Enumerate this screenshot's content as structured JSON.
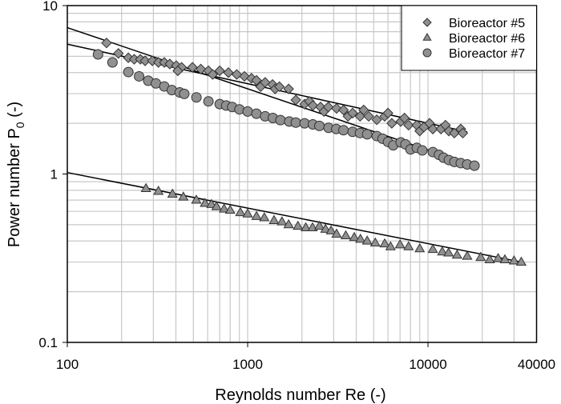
{
  "chart_data": {
    "type": "scatter",
    "xscale": "log",
    "yscale": "log",
    "xlim": [
      100,
      40000
    ],
    "ylim": [
      0.1,
      10
    ],
    "grid": true,
    "legend_position": "top-right",
    "xlabel": "Reynolds number Re (-)",
    "ylabel": {
      "main": "Power number P",
      "sub": "0",
      "suffix": " (-)"
    },
    "xticks": [
      {
        "value": 100,
        "label": "100"
      },
      {
        "value": 1000,
        "label": "1000"
      },
      {
        "value": 10000,
        "label": "10000"
      },
      {
        "value": 40000,
        "label": "40000"
      }
    ],
    "yticks": [
      {
        "value": 0.1,
        "label": "0.1"
      },
      {
        "value": 1,
        "label": "1"
      },
      {
        "value": 10,
        "label": "10"
      }
    ],
    "colors": {
      "marker_fill": "#909090",
      "marker_stroke": "#333333",
      "grid": "#c8c8c8",
      "fit_line": "#000000"
    },
    "series": [
      {
        "name": "Bioreactor #5",
        "marker": "diamond",
        "points": [
          [
            165,
            6.0
          ],
          [
            192,
            5.2
          ],
          [
            218,
            4.9
          ],
          [
            235,
            4.8
          ],
          [
            254,
            4.8
          ],
          [
            270,
            4.7
          ],
          [
            296,
            4.7
          ],
          [
            320,
            4.6
          ],
          [
            345,
            4.6
          ],
          [
            370,
            4.5
          ],
          [
            402,
            4.4
          ],
          [
            430,
            4.3
          ],
          [
            410,
            4.1
          ],
          [
            494,
            4.3
          ],
          [
            550,
            4.2
          ],
          [
            606,
            4.1
          ],
          [
            640,
            3.9
          ],
          [
            700,
            4.1
          ],
          [
            782,
            4.0
          ],
          [
            870,
            3.9
          ],
          [
            960,
            3.8
          ],
          [
            1050,
            3.7
          ],
          [
            1119,
            3.6
          ],
          [
            1180,
            3.3
          ],
          [
            1250,
            3.5
          ],
          [
            1374,
            3.4
          ],
          [
            1420,
            3.2
          ],
          [
            1500,
            3.3
          ],
          [
            1687,
            3.2
          ],
          [
            1850,
            2.75
          ],
          [
            2069,
            2.6
          ],
          [
            2200,
            2.7
          ],
          [
            2300,
            2.55
          ],
          [
            2537,
            2.5
          ],
          [
            2650,
            2.35
          ],
          [
            2800,
            2.5
          ],
          [
            3112,
            2.45
          ],
          [
            3400,
            2.4
          ],
          [
            3600,
            2.2
          ],
          [
            3821,
            2.3
          ],
          [
            4200,
            2.2
          ],
          [
            4400,
            2.4
          ],
          [
            4690,
            2.2
          ],
          [
            5200,
            2.1
          ],
          [
            5754,
            2.2
          ],
          [
            6000,
            2.3
          ],
          [
            6300,
            2.0
          ],
          [
            7063,
            2.05
          ],
          [
            7400,
            2.15
          ],
          [
            7800,
            1.95
          ],
          [
            8670,
            1.95
          ],
          [
            9000,
            1.8
          ],
          [
            9500,
            1.9
          ],
          [
            10200,
            2.0
          ],
          [
            10640,
            1.85
          ],
          [
            11800,
            1.85
          ],
          [
            12500,
            1.95
          ],
          [
            13060,
            1.8
          ],
          [
            14000,
            1.75
          ],
          [
            15200,
            1.85
          ],
          [
            15600,
            1.75
          ]
        ],
        "fit": [
          [
            100,
            5.9
          ],
          [
            16500,
            1.78
          ]
        ]
      },
      {
        "name": "Bioreactor #6",
        "marker": "triangle",
        "points": [
          [
            273,
            0.82
          ],
          [
            320,
            0.79
          ],
          [
            383,
            0.76
          ],
          [
            440,
            0.73
          ],
          [
            519,
            0.7
          ],
          [
            580,
            0.67
          ],
          [
            630,
            0.66
          ],
          [
            672,
            0.64
          ],
          [
            740,
            0.62
          ],
          [
            800,
            0.61
          ],
          [
            911,
            0.59
          ],
          [
            1000,
            0.58
          ],
          [
            1120,
            0.56
          ],
          [
            1237,
            0.55
          ],
          [
            1400,
            0.53
          ],
          [
            1550,
            0.52
          ],
          [
            1687,
            0.5
          ],
          [
            1900,
            0.49
          ],
          [
            2100,
            0.48
          ],
          [
            2290,
            0.48
          ],
          [
            2500,
            0.49
          ],
          [
            2700,
            0.47
          ],
          [
            2900,
            0.46
          ],
          [
            3112,
            0.44
          ],
          [
            3500,
            0.43
          ],
          [
            3900,
            0.42
          ],
          [
            4220,
            0.41
          ],
          [
            4600,
            0.4
          ],
          [
            5100,
            0.39
          ],
          [
            5754,
            0.385
          ],
          [
            6200,
            0.37
          ],
          [
            7000,
            0.38
          ],
          [
            7800,
            0.37
          ],
          [
            9000,
            0.36
          ],
          [
            10640,
            0.357
          ],
          [
            12000,
            0.345
          ],
          [
            13000,
            0.34
          ],
          [
            14500,
            0.33
          ],
          [
            16500,
            0.325
          ],
          [
            19600,
            0.32
          ],
          [
            22000,
            0.31
          ],
          [
            24500,
            0.315
          ],
          [
            26700,
            0.31
          ],
          [
            30000,
            0.305
          ],
          [
            32900,
            0.3
          ]
        ],
        "fit": [
          [
            100,
            1.02
          ],
          [
            33000,
            0.3
          ]
        ]
      },
      {
        "name": "Bioreactor #7",
        "marker": "circle",
        "points": [
          [
            148,
            5.13
          ],
          [
            178,
            4.6
          ],
          [
            218,
            4.03
          ],
          [
            250,
            3.8
          ],
          [
            281,
            3.58
          ],
          [
            310,
            3.45
          ],
          [
            345,
            3.31
          ],
          [
            380,
            3.15
          ],
          [
            420,
            3.05
          ],
          [
            445,
            2.99
          ],
          [
            520,
            2.85
          ],
          [
            606,
            2.7
          ],
          [
            700,
            2.6
          ],
          [
            760,
            2.55
          ],
          [
            821,
            2.5
          ],
          [
            900,
            2.42
          ],
          [
            1000,
            2.35
          ],
          [
            1119,
            2.28
          ],
          [
            1250,
            2.2
          ],
          [
            1380,
            2.15
          ],
          [
            1520,
            2.09
          ],
          [
            1700,
            2.05
          ],
          [
            1850,
            2.02
          ],
          [
            2069,
            2.0
          ],
          [
            2300,
            1.97
          ],
          [
            2500,
            1.93
          ],
          [
            2810,
            1.88
          ],
          [
            3100,
            1.85
          ],
          [
            3400,
            1.82
          ],
          [
            3821,
            1.78
          ],
          [
            4200,
            1.75
          ],
          [
            4600,
            1.72
          ],
          [
            5200,
            1.68
          ],
          [
            5600,
            1.62
          ],
          [
            6000,
            1.55
          ],
          [
            6420,
            1.48
          ],
          [
            7063,
            1.54
          ],
          [
            7500,
            1.5
          ],
          [
            8000,
            1.4
          ],
          [
            8670,
            1.43
          ],
          [
            9300,
            1.38
          ],
          [
            10640,
            1.35
          ],
          [
            11500,
            1.3
          ],
          [
            12200,
            1.25
          ],
          [
            13060,
            1.21
          ],
          [
            14000,
            1.18
          ],
          [
            15200,
            1.16
          ],
          [
            16500,
            1.14
          ],
          [
            18100,
            1.12
          ]
        ],
        "fit": [
          [
            100,
            7.4
          ],
          [
            18100,
            1.12
          ]
        ]
      }
    ]
  }
}
